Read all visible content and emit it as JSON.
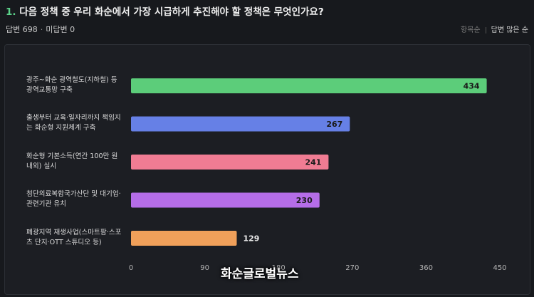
{
  "question": {
    "number": "1.",
    "text": "다음 정책 중 우리 화순에서 가장 시급하게 추진해야 할 정책은 무엇인가요?"
  },
  "stats": {
    "answered": "답변 698",
    "unanswered": "미답변 0"
  },
  "sort": {
    "by_item": "항목순",
    "by_count": "답변 많은 순"
  },
  "watermark": "화순글로벌뉴스",
  "chart_data": {
    "type": "bar",
    "orientation": "horizontal",
    "categories": [
      [
        "광주~화순 광역철도(지하철) 등",
        "광역교통망 구축"
      ],
      [
        "출생부터 교육·일자리까지 책임지",
        "는 화순형 지원체계 구축"
      ],
      [
        "화순형 기본소득(연간 100만 원",
        "내외) 실시"
      ],
      [
        "첨단의료복합국가산단 및 대기업·",
        "관련기관 유치"
      ],
      [
        "폐광지역 재생사업(스마트팜·스포",
        "츠 단지·OTT 스튜디오 등)"
      ]
    ],
    "values": [
      434,
      267,
      241,
      230,
      129
    ],
    "colors": [
      "#5ccd7a",
      "#6680e6",
      "#f07c93",
      "#b56de8",
      "#f0a05a"
    ],
    "xlim": [
      0,
      450
    ],
    "xticks": [
      0,
      90,
      180,
      270,
      360,
      450
    ],
    "grid": false,
    "legend": "none"
  }
}
